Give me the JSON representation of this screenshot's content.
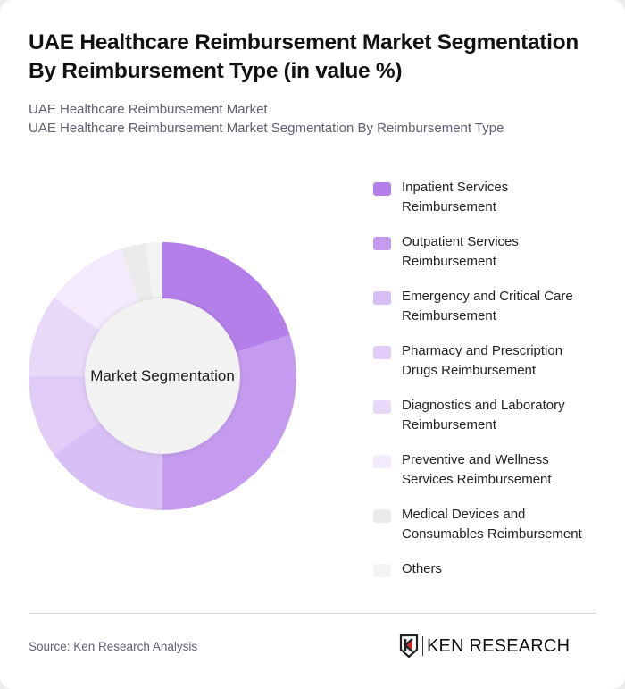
{
  "header": {
    "title": "UAE Healthcare Reimbursement Market Segmentation By Reimbursement Type (in value %)",
    "subtitle_1": "UAE Healthcare Reimbursement Market",
    "subtitle_2": "UAE Healthcare Reimbursement Market Segmentation By Reimbursement Type"
  },
  "chart": {
    "center_label": "Market Segmentation"
  },
  "legend": {
    "items": [
      {
        "label": "Inpatient Services Reimbursement",
        "color": "#b47fea"
      },
      {
        "label": "Outpatient Services Reimbursement",
        "color": "#c49bee"
      },
      {
        "label": "Emergency and Critical Care Reimbursement",
        "color": "#d8bff5"
      },
      {
        "label": "Pharmacy and Prescription Drugs Reimbursement",
        "color": "#e0ccf7"
      },
      {
        "label": "Diagnostics and Laboratory Reimbursement",
        "color": "#e8d9f9"
      },
      {
        "label": "Preventive and Wellness Services Reimbursement",
        "color": "#f3ebfc"
      },
      {
        "label": "Medical Devices and Consumables Reimbursement",
        "color": "#ebebeb"
      },
      {
        "label": "Others",
        "color": "#f3f3f3"
      }
    ]
  },
  "footer": {
    "source": "Source: Ken Research Analysis",
    "brand": "KEN RESEARCH"
  },
  "chart_data": {
    "type": "pie",
    "subtype": "donut",
    "title": "UAE Healthcare Reimbursement Market Segmentation By Reimbursement Type (in value %)",
    "center_label": "Market Segmentation",
    "categories": [
      "Inpatient Services Reimbursement",
      "Outpatient Services Reimbursement",
      "Emergency and Critical Care Reimbursement",
      "Pharmacy and Prescription Drugs Reimbursement",
      "Diagnostics and Laboratory Reimbursement",
      "Preventive and Wellness Services Reimbursement",
      "Medical Devices and Consumables Reimbursement",
      "Others"
    ],
    "values": [
      20,
      30,
      15,
      10,
      10,
      10,
      3,
      2
    ],
    "colors": [
      "#b47fea",
      "#c49bee",
      "#d8bff5",
      "#e0ccf7",
      "#e8d9f9",
      "#f3ebfc",
      "#ebebeb",
      "#f3f3f3"
    ],
    "legend_position": "right",
    "start_angle": "12 o'clock, clockwise"
  }
}
